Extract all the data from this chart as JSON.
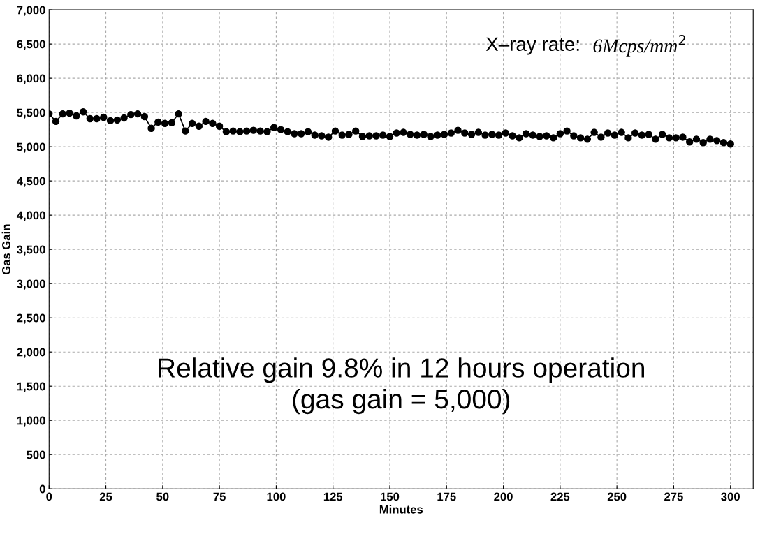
{
  "chart_data": {
    "type": "line",
    "xlabel": "Minutes",
    "ylabel": "Gas Gain",
    "x": [
      0,
      3,
      6,
      9,
      12,
      15,
      18,
      21,
      24,
      27,
      30,
      33,
      36,
      39,
      42,
      45,
      48,
      51,
      54,
      57,
      60,
      63,
      66,
      69,
      72,
      75,
      78,
      81,
      84,
      87,
      90,
      93,
      96,
      99,
      102,
      105,
      108,
      111,
      114,
      117,
      120,
      123,
      126,
      129,
      132,
      135,
      138,
      141,
      144,
      147,
      150,
      153,
      156,
      159,
      162,
      165,
      168,
      171,
      174,
      177,
      180,
      183,
      186,
      189,
      192,
      195,
      198,
      201,
      204,
      207,
      210,
      213,
      216,
      219,
      222,
      225,
      228,
      231,
      234,
      237,
      240,
      243,
      246,
      249,
      252,
      255,
      258,
      261,
      264,
      267,
      270,
      273,
      276,
      279,
      282,
      285,
      288,
      291,
      294,
      297,
      300
    ],
    "series": [
      {
        "color": "#000000",
        "values": [
          5480,
          5370,
          5480,
          5490,
          5450,
          5510,
          5410,
          5410,
          5430,
          5380,
          5390,
          5420,
          5470,
          5480,
          5440,
          5270,
          5360,
          5340,
          5350,
          5480,
          5230,
          5340,
          5300,
          5370,
          5340,
          5300,
          5220,
          5230,
          5220,
          5230,
          5240,
          5230,
          5220,
          5280,
          5250,
          5220,
          5190,
          5190,
          5220,
          5170,
          5160,
          5140,
          5230,
          5170,
          5180,
          5230,
          5150,
          5160,
          5160,
          5170,
          5150,
          5200,
          5210,
          5180,
          5170,
          5180,
          5150,
          5170,
          5180,
          5200,
          5240,
          5200,
          5180,
          5210,
          5170,
          5180,
          5170,
          5200,
          5160,
          5130,
          5190,
          5170,
          5150,
          5160,
          5130,
          5190,
          5230,
          5160,
          5130,
          5110,
          5210,
          5140,
          5200,
          5170,
          5210,
          5130,
          5200,
          5170,
          5180,
          5110,
          5180,
          5130,
          5130,
          5140,
          5070,
          5110,
          5060,
          5110,
          5090,
          5060,
          5040
        ]
      }
    ],
    "xlim": [
      0,
      310
    ],
    "xticks": [
      0,
      25,
      50,
      75,
      100,
      125,
      150,
      175,
      200,
      225,
      250,
      275,
      300
    ],
    "ylim": [
      0,
      7000
    ],
    "yticks": [
      0,
      500,
      {
        "value": 1000,
        "label": "1,000"
      },
      {
        "value": 1500,
        "label": "1,500"
      },
      {
        "value": 2000,
        "label": "2,000"
      },
      {
        "value": 2500,
        "label": "2,500"
      },
      {
        "value": 3000,
        "label": "3,000"
      },
      {
        "value": 3500,
        "label": "3,500"
      },
      {
        "value": 4000,
        "label": "4,000"
      },
      {
        "value": 4500,
        "label": "4,500"
      },
      {
        "value": 5000,
        "label": "5,000"
      },
      {
        "value": 5500,
        "label": "5,500"
      },
      {
        "value": 6000,
        "label": "6,000"
      },
      {
        "value": 6500,
        "label": "6,500"
      },
      {
        "value": 7000,
        "label": "7,000"
      }
    ],
    "grid": true,
    "marker": "circle",
    "line_style": "solid",
    "annotations": [
      "X–ray rate:",
      "6Mcps/mm$^{2}$",
      "Relative gain 9.8% in 12 hours operation\n(gas gain = 5,000)"
    ]
  }
}
